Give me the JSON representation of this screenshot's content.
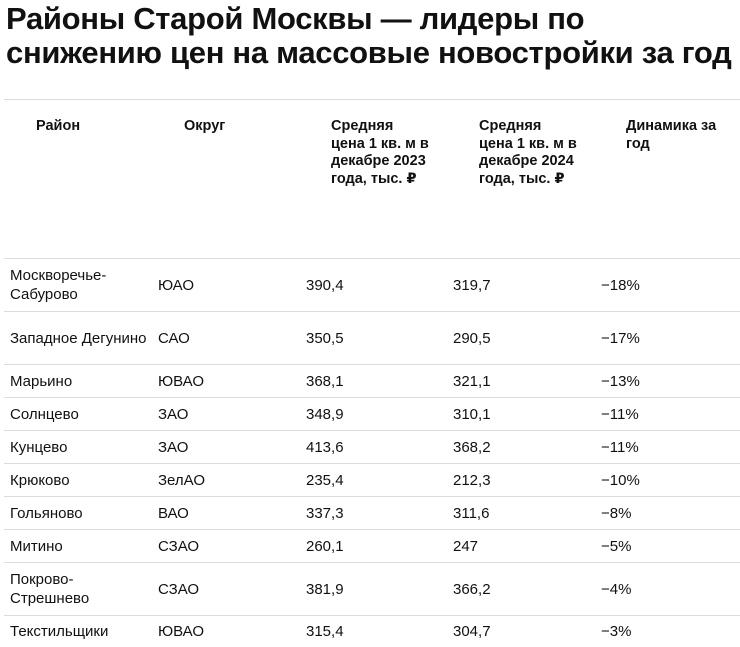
{
  "title": "Районы Старой Москвы — лидеры по снижению цен на массовые новостройки за год",
  "table": {
    "headers": [
      "Район",
      "Округ",
      "Средняя цена 1 кв. м в декабре 2023 года, тыс. ₽",
      "Средняя цена 1 кв. м в декабре 2024 года, тыс. ₽",
      "Динамика за год"
    ],
    "rows": [
      {
        "district": "Москворечье-Сабурово",
        "okrug": "ЮАО",
        "p2023": "390,4",
        "p2024": "319,7",
        "change": "−18%"
      },
      {
        "district": "Западное Дегунино",
        "okrug": "САО",
        "p2023": "350,5",
        "p2024": "290,5",
        "change": "−17%"
      },
      {
        "district": "Марьино",
        "okrug": "ЮВАО",
        "p2023": "368,1",
        "p2024": "321,1",
        "change": "−13%"
      },
      {
        "district": "Солнцево",
        "okrug": "ЗАО",
        "p2023": "348,9",
        "p2024": "310,1",
        "change": "−11%"
      },
      {
        "district": "Кунцево",
        "okrug": "ЗАО",
        "p2023": "413,6",
        "p2024": "368,2",
        "change": "−11%"
      },
      {
        "district": "Крюково",
        "okrug": "ЗелАО",
        "p2023": "235,4",
        "p2024": "212,3",
        "change": "−10%"
      },
      {
        "district": "Гольяново",
        "okrug": "ВАО",
        "p2023": "337,3",
        "p2024": "311,6",
        "change": "−8%"
      },
      {
        "district": "Митино",
        "okrug": "СЗАО",
        "p2023": "260,1",
        "p2024": "247",
        "change": "−5%"
      },
      {
        "district": "Покрово-Стрешнево",
        "okrug": "СЗАО",
        "p2023": "381,9",
        "p2024": "366,2",
        "change": "−4%"
      },
      {
        "district": "Текстильщики",
        "okrug": "ЮВАО",
        "p2023": "315,4",
        "p2024": "304,7",
        "change": "−3%"
      }
    ]
  }
}
